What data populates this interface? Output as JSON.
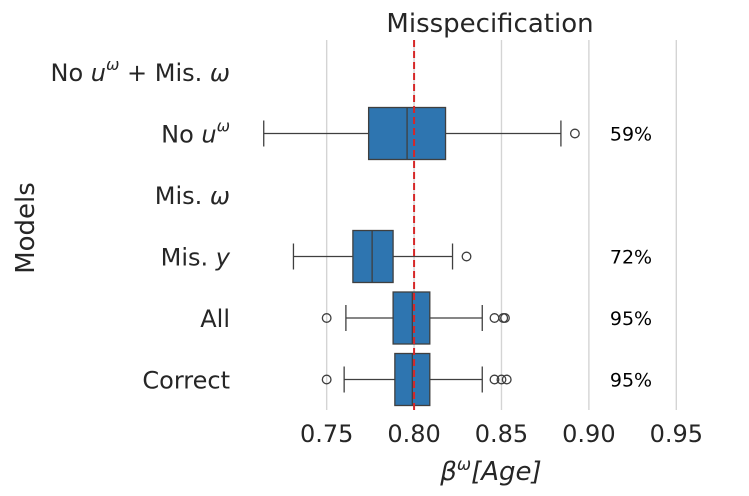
{
  "chart_data": {
    "type": "boxplot",
    "orientation": "horizontal",
    "title": "Misspecification",
    "xlabel_base": "β",
    "xlabel_sup": "ω",
    "xlabel_bracket": "[Age]",
    "ylabel": "Models",
    "xlim": [
      0.705,
      0.975
    ],
    "xticks": [
      0.75,
      0.8,
      0.85,
      0.9,
      0.95
    ],
    "xtick_labels": [
      "0.75",
      "0.80",
      "0.85",
      "0.90",
      "0.95"
    ],
    "reference_line": {
      "x": 0.8,
      "color": "#d62728",
      "style": "dashed"
    },
    "box_color": "#2e75b0",
    "categories": [
      {
        "label_parts": [
          {
            "t": "No ",
            "i": false
          },
          {
            "t": "u",
            "i": true
          },
          {
            "t": "ω",
            "i": true,
            "sup": true
          },
          {
            "t": " + Mis. ",
            "i": false
          },
          {
            "t": "ω",
            "i": true
          }
        ],
        "box": null,
        "coverage": ""
      },
      {
        "label_parts": [
          {
            "t": "No ",
            "i": false
          },
          {
            "t": "u",
            "i": true
          },
          {
            "t": "ω",
            "i": true,
            "sup": true
          }
        ],
        "box": {
          "whislo": 0.714,
          "q1": 0.774,
          "med": 0.796,
          "q3": 0.818,
          "whishi": 0.884
        },
        "outliers": [
          0.892
        ],
        "coverage": "59%"
      },
      {
        "label_parts": [
          {
            "t": "Mis. ",
            "i": false
          },
          {
            "t": "ω",
            "i": true
          }
        ],
        "box": null,
        "coverage": ""
      },
      {
        "label_parts": [
          {
            "t": "Mis. ",
            "i": false
          },
          {
            "t": "y",
            "i": true
          }
        ],
        "box": {
          "whislo": 0.731,
          "q1": 0.765,
          "med": 0.776,
          "q3": 0.788,
          "whishi": 0.822
        },
        "outliers": [
          0.83
        ],
        "coverage": "72%"
      },
      {
        "label_parts": [
          {
            "t": "All",
            "i": false
          }
        ],
        "box": {
          "whislo": 0.761,
          "q1": 0.788,
          "med": 0.799,
          "q3": 0.809,
          "whishi": 0.839
        },
        "outliers": [
          0.75,
          0.846,
          0.851,
          0.852
        ],
        "coverage": "95%"
      },
      {
        "label_parts": [
          {
            "t": "Correct",
            "i": false
          }
        ],
        "box": {
          "whislo": 0.76,
          "q1": 0.789,
          "med": 0.799,
          "q3": 0.809,
          "whishi": 0.839
        },
        "outliers": [
          0.75,
          0.846,
          0.85,
          0.853
        ],
        "coverage": "95%"
      }
    ]
  }
}
